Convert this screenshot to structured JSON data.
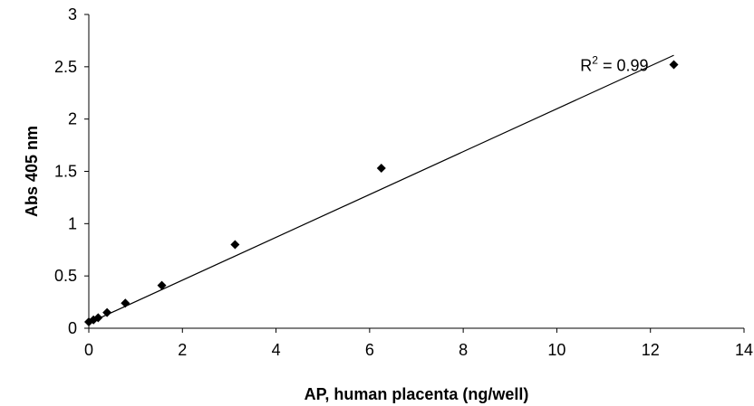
{
  "chart_data": {
    "type": "scatter",
    "title": "",
    "xlabel": "AP, human placenta (ng/well)",
    "ylabel": "Abs 405 nm",
    "xlim": [
      0,
      14
    ],
    "ylim": [
      0,
      3
    ],
    "xticks": [
      0,
      2,
      4,
      6,
      8,
      10,
      12,
      14
    ],
    "xtick_labels": [
      "0",
      "2",
      "4",
      "6",
      "8",
      "10",
      "12",
      "14"
    ],
    "yticks": [
      0,
      0.5,
      1,
      1.5,
      2,
      2.5,
      3
    ],
    "ytick_labels": [
      "0",
      "0.5",
      "1",
      "1.5",
      "2",
      "2.5",
      "3"
    ],
    "grid": false,
    "legend": "none",
    "marker": "diamond",
    "marker_color": "#000000",
    "series": [
      {
        "x": [
          0,
          0.1,
          0.2,
          0.39,
          0.78,
          1.56,
          3.125,
          6.25,
          12.5
        ],
        "y": [
          0.06,
          0.08,
          0.1,
          0.15,
          0.24,
          0.41,
          0.8,
          1.53,
          2.52
        ]
      }
    ],
    "trendline": {
      "type": "linear",
      "x": [
        0,
        12.5
      ],
      "y": [
        0.05,
        2.61
      ],
      "color": "#000000"
    },
    "annotation": {
      "prefix": "R",
      "superscript": "2",
      "suffix": " = 0.99",
      "x": 10.5,
      "y": 2.46
    }
  }
}
